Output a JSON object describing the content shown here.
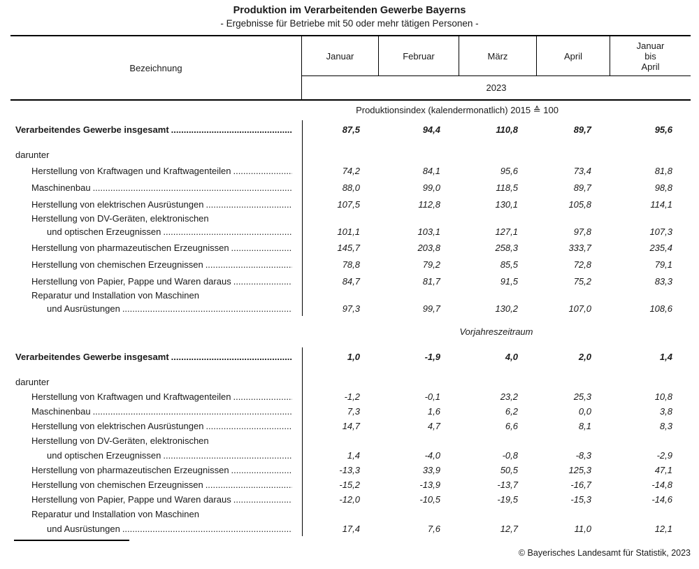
{
  "title": "Produktion im Verarbeitenden Gewerbe Bayerns",
  "subtitle": "- Ergebnisse für Betriebe mit 50 oder mehr tätigen Personen -",
  "footer": "© Bayerisches Landesamt für Statistik, 2023",
  "leader_dots": "..........................................................................................................................................",
  "table": {
    "header": {
      "label_column": "Bezeichnung",
      "months": [
        "Januar",
        "Februar",
        "März",
        "April"
      ],
      "period_column_lines": [
        "Januar",
        "bis",
        "April"
      ],
      "year": "2023"
    },
    "sections": [
      {
        "caption": "Produktionsindex (kalendermonatlich) 2015 ≙ 100",
        "caption_italic": false,
        "rows": [
          {
            "type": "total",
            "label": "Verarbeitendes Gewerbe insgesamt",
            "values": [
              "87,5",
              "94,4",
              "110,8",
              "89,7",
              "95,6"
            ]
          },
          {
            "type": "subheading",
            "label": "darunter"
          },
          {
            "type": "item",
            "label": "Herstellung von Kraftwagen und Kraftwagenteilen",
            "values": [
              "74,2",
              "84,1",
              "95,6",
              "73,4",
              "81,8"
            ]
          },
          {
            "type": "item",
            "label": "Maschinenbau",
            "values": [
              "88,0",
              "99,0",
              "118,5",
              "89,7",
              "98,8"
            ]
          },
          {
            "type": "item",
            "label": "Herstellung von elektrischen Ausrüstungen",
            "values": [
              "107,5",
              "112,8",
              "130,1",
              "105,8",
              "114,1"
            ]
          },
          {
            "type": "item2",
            "label": "Herstellung von DV-Geräten, elektronischen",
            "label2": "und optischen Erzeugnissen",
            "values": [
              "101,1",
              "103,1",
              "127,1",
              "97,8",
              "107,3"
            ]
          },
          {
            "type": "item",
            "label": "Herstellung von pharmazeutischen Erzeugnissen",
            "values": [
              "145,7",
              "203,8",
              "258,3",
              "333,7",
              "235,4"
            ]
          },
          {
            "type": "item",
            "label": "Herstellung von chemischen Erzeugnissen",
            "values": [
              "78,8",
              "79,2",
              "85,5",
              "72,8",
              "79,1"
            ]
          },
          {
            "type": "item",
            "label": "Herstellung von Papier, Pappe und Waren daraus",
            "values": [
              "84,7",
              "81,7",
              "91,5",
              "75,2",
              "83,3"
            ]
          },
          {
            "type": "item2",
            "label": "Reparatur und Installation von Maschinen",
            "label2": "und Ausrüstungen",
            "values": [
              "97,3",
              "99,7",
              "130,2",
              "107,0",
              "108,6"
            ]
          }
        ]
      },
      {
        "caption": "Vorjahreszeitraum",
        "caption_italic": true,
        "rows": [
          {
            "type": "total",
            "label": "Verarbeitendes Gewerbe insgesamt",
            "values": [
              "1,0",
              "-1,9",
              "4,0",
              "2,0",
              "1,4"
            ]
          },
          {
            "type": "subheading",
            "label": "darunter"
          },
          {
            "type": "item",
            "label": "Herstellung von Kraftwagen und Kraftwagenteilen",
            "values": [
              "-1,2",
              "-0,1",
              "23,2",
              "25,3",
              "10,8"
            ]
          },
          {
            "type": "item",
            "label": "Maschinenbau",
            "values": [
              "7,3",
              "1,6",
              "6,2",
              "0,0",
              "3,8"
            ]
          },
          {
            "type": "item",
            "label": "Herstellung von elektrischen Ausrüstungen",
            "values": [
              "14,7",
              "4,7",
              "6,6",
              "8,1",
              "8,3"
            ]
          },
          {
            "type": "item2",
            "label": "Herstellung von DV-Geräten, elektronischen",
            "label2": "und optischen Erzeugnissen",
            "values": [
              "1,4",
              "-4,0",
              "-0,8",
              "-8,3",
              "-2,9"
            ]
          },
          {
            "type": "item",
            "label": "Herstellung von pharmazeutischen Erzeugnissen",
            "values": [
              "-13,3",
              "33,9",
              "50,5",
              "125,3",
              "47,1"
            ]
          },
          {
            "type": "item",
            "label": "Herstellung von chemischen Erzeugnissen",
            "values": [
              "-15,2",
              "-13,9",
              "-13,7",
              "-16,7",
              "-14,8"
            ]
          },
          {
            "type": "item",
            "label": "Herstellung von Papier, Pappe und Waren daraus",
            "values": [
              "-12,0",
              "-10,5",
              "-19,5",
              "-15,3",
              "-14,6"
            ]
          },
          {
            "type": "item2",
            "label": "Reparatur und Installation von Maschinen",
            "label2": "und Ausrüstungen",
            "values": [
              "17,4",
              "7,6",
              "12,7",
              "11,0",
              "12,1"
            ]
          }
        ]
      }
    ]
  }
}
